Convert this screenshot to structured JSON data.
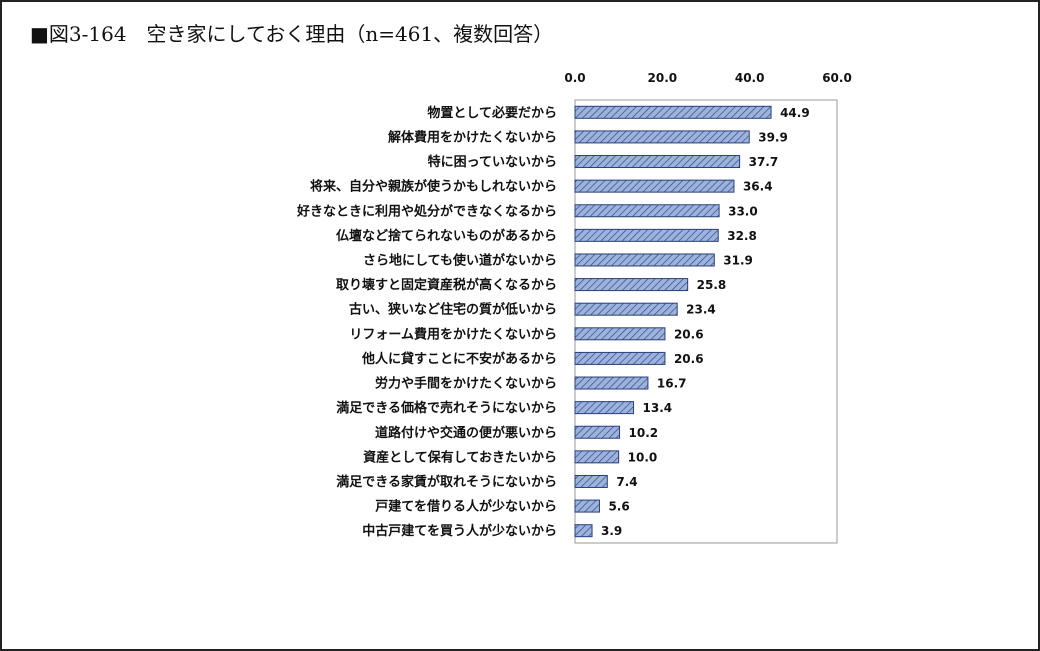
{
  "title": "■図3-164　空き家にしておく理由（n=461、複数回答）",
  "chart_data": {
    "type": "bar",
    "orientation": "horizontal",
    "title": "■図3-164　空き家にしておく理由（n=461、複数回答）",
    "xlim": [
      0,
      60
    ],
    "ticks": [
      "0.0",
      "20.0",
      "40.0",
      "60.0"
    ],
    "tick_values": [
      0,
      20,
      40,
      60
    ],
    "categories": [
      "物置として必要だから",
      "解体費用をかけたくないから",
      "特に困っていないから",
      "将来、自分や親族が使うかもしれないから",
      "好きなときに利用や処分ができなくなるから",
      "仏壇など捨てられないものがあるから",
      "さら地にしても使い道がないから",
      "取り壊すと固定資産税が高くなるから",
      "古い、狭いなど住宅の質が低いから",
      "リフォーム費用をかけたくないから",
      "他人に貸すことに不安があるから",
      "労力や手間をかけたくないから",
      "満足できる価格で売れそうにないから",
      "道路付けや交通の便が悪いから",
      "資産として保有しておきたいから",
      "満足できる家賃が取れそうにないから",
      "戸建てを借りる人が少ないから",
      "中古戸建てを買う人が少ないから"
    ],
    "values": [
      44.9,
      39.9,
      37.7,
      36.4,
      33.0,
      32.8,
      31.9,
      25.8,
      23.4,
      20.6,
      20.6,
      16.7,
      13.4,
      10.2,
      10.0,
      7.4,
      5.6,
      3.9
    ],
    "value_labels": [
      "44.9",
      "39.9",
      "37.7",
      "36.4",
      "33.0",
      "32.8",
      "31.9",
      "25.8",
      "23.4",
      "20.6",
      "20.6",
      "16.7",
      "13.4",
      "10.2",
      "10.0",
      "7.4",
      "5.6",
      "3.9"
    ],
    "bar_color": "#9db3de",
    "bar_stroke": "#2a3f7a",
    "hatch_color": "#34497f",
    "grid": false,
    "legend": "none"
  }
}
